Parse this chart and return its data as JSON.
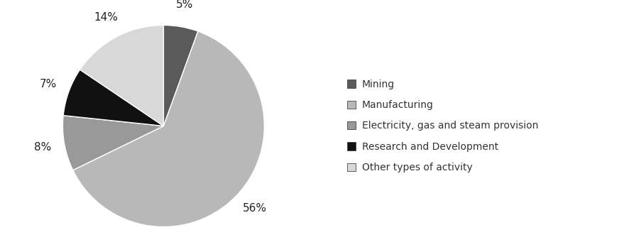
{
  "labels": [
    "Mining",
    "Manufacturing",
    "Electricity, gas and steam provision",
    "Research and Development",
    "Other types of activity"
  ],
  "values": [
    5,
    56,
    8,
    7,
    14
  ],
  "colors": [
    "#5a5a5a",
    "#b8b8b8",
    "#999999",
    "#111111",
    "#d8d8d8"
  ],
  "pct_labels": [
    "5%",
    "56%",
    "8%",
    "7%",
    "14%"
  ],
  "legend_labels": [
    "Mining",
    "Manufacturing",
    "Electricity, gas and steam provision",
    "Research and Development",
    "Other types of activity"
  ],
  "background_color": "#ffffff",
  "label_fontsize": 11,
  "legend_fontsize": 10
}
